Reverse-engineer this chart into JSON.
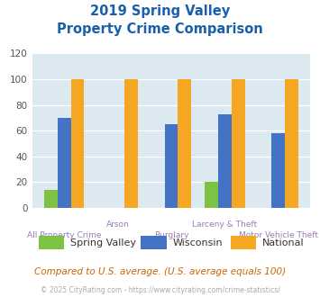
{
  "title_line1": "2019 Spring Valley",
  "title_line2": "Property Crime Comparison",
  "categories_top": [
    "",
    "Arson",
    "",
    "Larceny & Theft",
    ""
  ],
  "categories_bottom": [
    "All Property Crime",
    "",
    "Burglary",
    "",
    "Motor Vehicle Theft"
  ],
  "spring_valley": [
    14,
    0,
    0,
    20,
    0
  ],
  "wisconsin": [
    70,
    0,
    65,
    73,
    58
  ],
  "national": [
    100,
    100,
    100,
    100,
    100
  ],
  "color_spring_valley": "#7dc242",
  "color_wisconsin": "#4472c4",
  "color_national": "#f5a623",
  "ylim": [
    0,
    120
  ],
  "yticks": [
    0,
    20,
    40,
    60,
    80,
    100,
    120
  ],
  "bar_width": 0.25,
  "title_color": "#1a5fa8",
  "xlabel_color": "#9b7bb8",
  "background_color": "#dce9f0",
  "legend_labels": [
    "Spring Valley",
    "Wisconsin",
    "National"
  ],
  "footer_text": "Compared to U.S. average. (U.S. average equals 100)",
  "copyright_text": "© 2025 CityRating.com - https://www.cityrating.com/crime-statistics/",
  "footer_color": "#cc6600",
  "copyright_color": "#aaaaaa"
}
